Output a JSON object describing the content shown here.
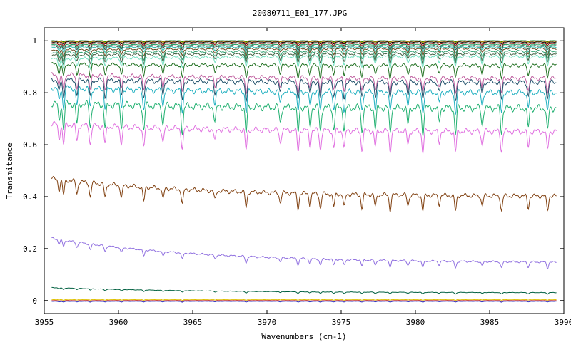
{
  "chart_data": {
    "type": "line",
    "title": "20080711_E01_177.JPG",
    "xlabel": "Wavenumbers (cm-1)",
    "ylabel": "Transmitance",
    "xlim": [
      3955,
      3990
    ],
    "ylim": [
      -0.05,
      1.05
    ],
    "xticks": [
      3955,
      3960,
      3965,
      3970,
      3975,
      3980,
      3985,
      3990
    ],
    "yticks": [
      0,
      0.2,
      0.4,
      0.6,
      0.8,
      1
    ],
    "ytick_labels": [
      "0",
      "0.2",
      "0.4",
      "0.6",
      "0.8",
      "1"
    ],
    "x_range_data": [
      3955.5,
      3989.5
    ],
    "grid": false,
    "legend": "none",
    "absorption_lines": [
      3956.0,
      3956.3,
      3957.2,
      3958.1,
      3959.1,
      3960.2,
      3961.7,
      3963.0,
      3964.3,
      3966.5,
      3968.6,
      3970.9,
      3972.1,
      3972.9,
      3973.6,
      3974.5,
      3975.2,
      3976.4,
      3977.3,
      3978.3,
      3979.5,
      3980.5,
      3981.6,
      3982.7,
      3984.5,
      3985.8,
      3987.6,
      3988.9
    ],
    "series": [
      {
        "level_start": 1.0,
        "level_end": 1.0,
        "depth": 0.003,
        "color": "#3030a0"
      },
      {
        "level_start": 1.0,
        "level_end": 1.0,
        "depth": 0.004,
        "color": "#00a000"
      },
      {
        "level_start": 0.998,
        "level_end": 0.998,
        "depth": 0.005,
        "color": "#c08000"
      },
      {
        "level_start": 0.995,
        "level_end": 0.995,
        "depth": 0.008,
        "color": "#000000"
      },
      {
        "level_start": 0.99,
        "level_end": 0.99,
        "depth": 0.01,
        "color": "#8b0000"
      },
      {
        "level_start": 0.985,
        "level_end": 0.985,
        "depth": 0.012,
        "color": "#20a060"
      },
      {
        "level_start": 0.98,
        "level_end": 0.98,
        "depth": 0.015,
        "color": "#404040"
      },
      {
        "level_start": 0.975,
        "level_end": 0.975,
        "depth": 0.02,
        "color": "#30c0b0"
      },
      {
        "level_start": 0.965,
        "level_end": 0.97,
        "depth": 0.025,
        "color": "#6a4a20"
      },
      {
        "level_start": 0.955,
        "level_end": 0.96,
        "depth": 0.03,
        "color": "#30a070"
      },
      {
        "level_start": 0.945,
        "level_end": 0.95,
        "depth": 0.035,
        "color": "#406040"
      },
      {
        "level_start": 0.93,
        "level_end": 0.94,
        "depth": 0.04,
        "color": "#70e0c0"
      },
      {
        "level_start": 0.91,
        "level_end": 0.905,
        "depth": 0.05,
        "color": "#207020"
      },
      {
        "level_start": 0.87,
        "level_end": 0.855,
        "depth": 0.06,
        "color": "#c060a0"
      },
      {
        "level_start": 0.85,
        "level_end": 0.84,
        "depth": 0.07,
        "color": "#20506a"
      },
      {
        "level_start": 0.82,
        "level_end": 0.8,
        "depth": 0.08,
        "color": "#20b0c0"
      },
      {
        "level_start": 0.76,
        "level_end": 0.74,
        "depth": 0.1,
        "color": "#20b070"
      },
      {
        "level_start": 0.68,
        "level_end": 0.65,
        "depth": 0.08,
        "color": "#e070e0"
      },
      {
        "level_start": 0.47,
        "level_end": 0.4,
        "depth": 0.06,
        "color": "#804010"
      },
      {
        "level_start": 0.24,
        "level_end": 0.145,
        "depth": 0.025,
        "color": "#9070e0"
      },
      {
        "level_start": 0.05,
        "level_end": 0.03,
        "depth": 0.006,
        "color": "#006040"
      },
      {
        "level_start": 0.004,
        "level_end": 0.004,
        "depth": 0.003,
        "color": "#e0c000"
      },
      {
        "level_start": 0.0,
        "level_end": 0.0,
        "depth": 0.003,
        "color": "#c03030"
      },
      {
        "level_start": -0.003,
        "level_end": -0.003,
        "depth": 0.003,
        "color": "#3030c0"
      }
    ]
  }
}
